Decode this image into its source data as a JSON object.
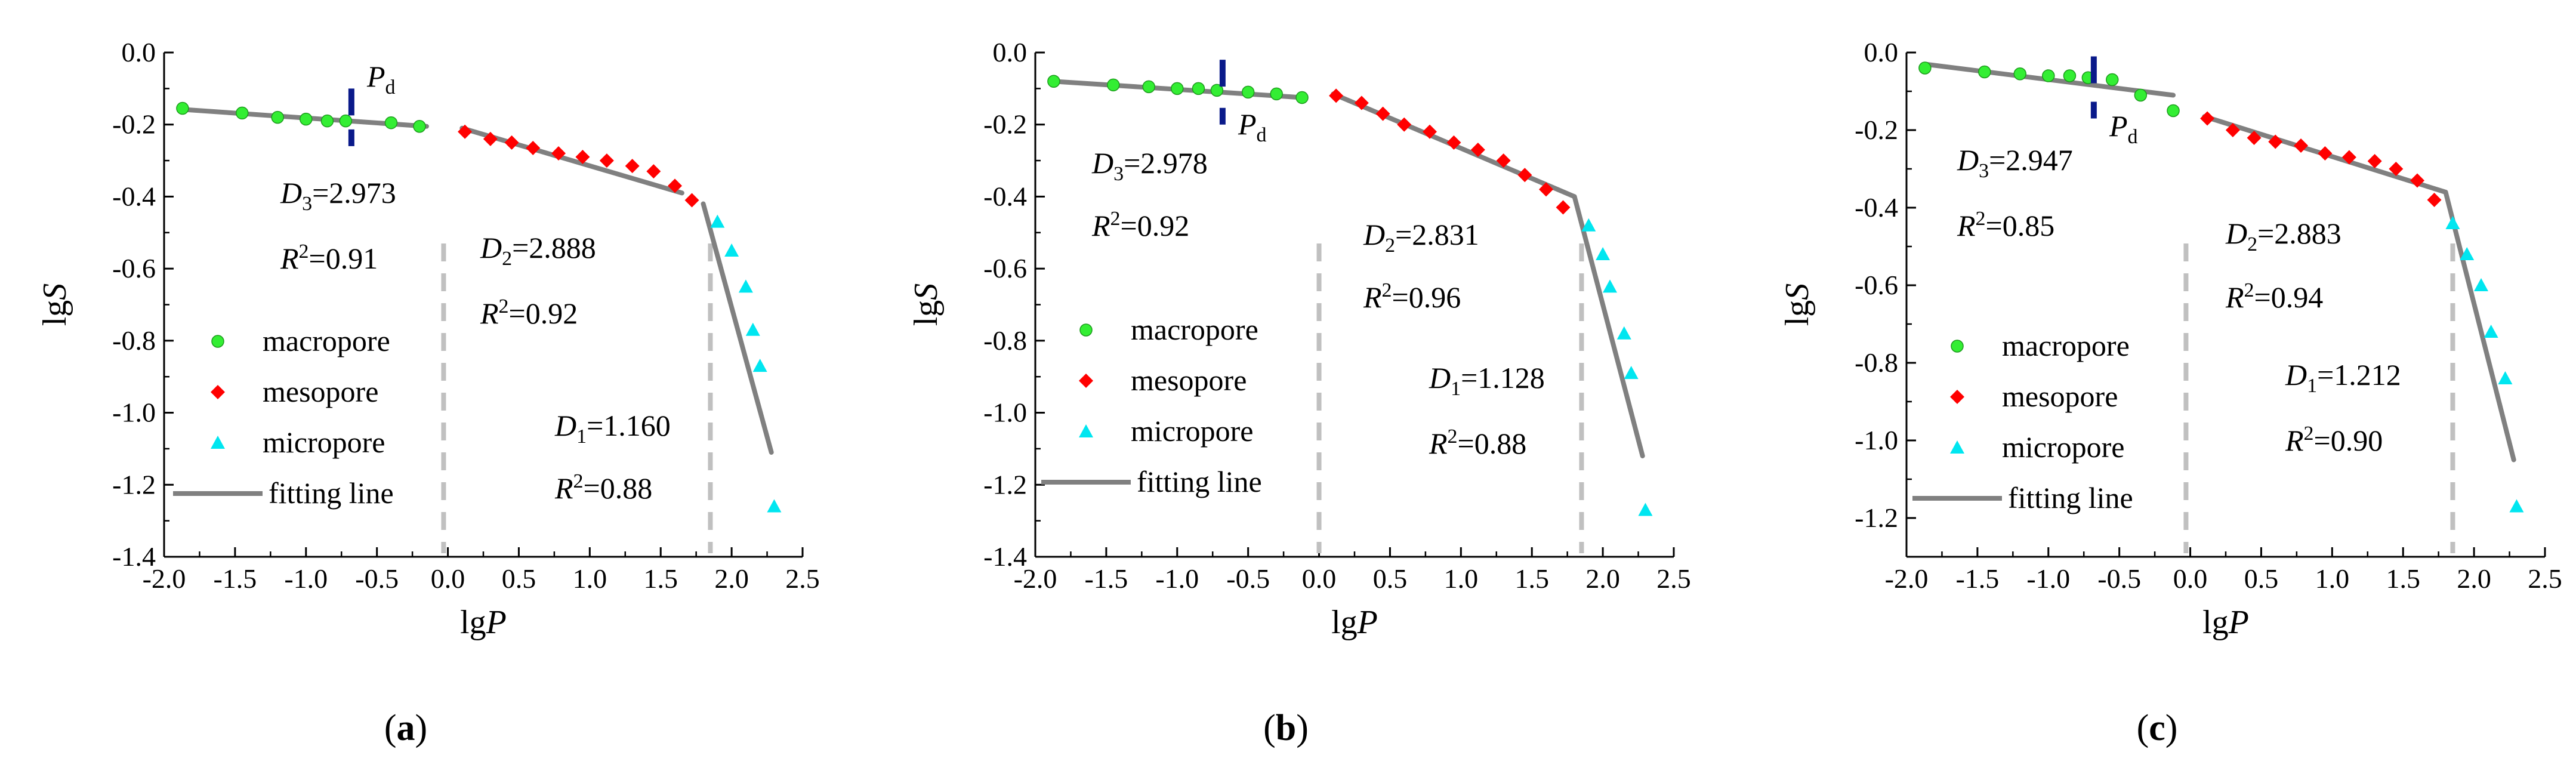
{
  "colors": {
    "macropore": "#33ee33",
    "mesopore": "#ff0000",
    "micropore": "#00e6f0",
    "fitting_line": "#808080",
    "divider": "#c0c0c0",
    "pd_marker": "#0a1a8a",
    "axis": "#000000"
  },
  "legend": {
    "macropore": "macropore",
    "mesopore": "mesopore",
    "micropore": "micropore",
    "fitting_line": "fitting line"
  },
  "chart_data": [
    {
      "type": "scatter",
      "panel_label": "(a)",
      "xlabel": "lgP",
      "ylabel": "lgS",
      "xlim": [
        -2.0,
        2.5
      ],
      "ylim": [
        -1.4,
        0.0
      ],
      "xticks": [
        -2.0,
        -1.5,
        -1.0,
        -0.5,
        0.0,
        0.5,
        1.0,
        1.5,
        2.0,
        2.5
      ],
      "xtick_labels": [
        "-2.0",
        "-1.5",
        "-1.0",
        "-0.5",
        "0.0",
        "0.5",
        "1.0",
        "1.5",
        "2.0",
        "2.5"
      ],
      "yticks": [
        0.0,
        -0.2,
        -0.4,
        -0.6,
        -0.8,
        -1.0,
        -1.2,
        -1.4
      ],
      "ytick_labels": [
        "0.0",
        "-0.2",
        "-0.4",
        "-0.6",
        "-0.8",
        "-1.0",
        "-1.2",
        "-1.4"
      ],
      "series": [
        {
          "name": "macropore",
          "marker": "circle",
          "x": [
            -1.87,
            -1.45,
            -1.2,
            -1.0,
            -0.85,
            -0.72,
            -0.4,
            -0.2
          ],
          "y": [
            -0.155,
            -0.168,
            -0.18,
            -0.185,
            -0.19,
            -0.19,
            -0.195,
            -0.205
          ]
        },
        {
          "name": "mesopore",
          "marker": "diamond",
          "x": [
            0.12,
            0.3,
            0.45,
            0.6,
            0.78,
            0.95,
            1.12,
            1.3,
            1.45,
            1.6,
            1.72
          ],
          "y": [
            -0.22,
            -0.24,
            -0.25,
            -0.265,
            -0.28,
            -0.29,
            -0.3,
            -0.315,
            -0.33,
            -0.37,
            -0.41
          ]
        },
        {
          "name": "micropore",
          "marker": "triangle",
          "x": [
            1.9,
            2.0,
            2.1,
            2.15,
            2.2,
            2.3
          ],
          "y": [
            -0.47,
            -0.55,
            -0.65,
            -0.77,
            -0.87,
            -1.26
          ]
        }
      ],
      "fit_lines": [
        {
          "name": "D3",
          "x": [
            -1.87,
            -0.15
          ],
          "y": [
            -0.158,
            -0.205
          ]
        },
        {
          "name": "D2",
          "x": [
            0.1,
            1.65
          ],
          "y": [
            -0.21,
            -0.39
          ]
        },
        {
          "name": "D1",
          "x": [
            1.8,
            2.28
          ],
          "y": [
            -0.42,
            -1.11
          ]
        }
      ],
      "dividers": [
        -0.03,
        1.85
      ],
      "pd_marker": {
        "x": -0.68,
        "y_range": [
          -0.1,
          -0.26
        ]
      },
      "pd_label": {
        "main": "P",
        "sub": "d"
      },
      "annotations": {
        "d3": {
          "letter": "D",
          "sub": "3",
          "value": "=2.973"
        },
        "r2_3": {
          "letter": "R",
          "sup": "2",
          "value": "=0.91"
        },
        "d2": {
          "letter": "D",
          "sub": "2",
          "value": "=2.888"
        },
        "r2_2": {
          "letter": "R",
          "sup": "2",
          "value": "=0.92"
        },
        "d1": {
          "letter": "D",
          "sub": "1",
          "value": "=1.160"
        },
        "r2_1": {
          "letter": "R",
          "sup": "2",
          "value": "=0.88"
        }
      }
    },
    {
      "type": "scatter",
      "panel_label": "(b)",
      "xlabel": "lgP",
      "ylabel": "lgS",
      "xlim": [
        -2.0,
        2.5
      ],
      "ylim": [
        -1.4,
        0.0
      ],
      "xticks": [
        -2.0,
        -1.5,
        -1.0,
        -0.5,
        0.0,
        0.5,
        1.0,
        1.5,
        2.0,
        2.5
      ],
      "xtick_labels": [
        "-2.0",
        "-1.5",
        "-1.0",
        "-0.5",
        "0.0",
        "0.5",
        "1.0",
        "1.5",
        "2.0",
        "2.5"
      ],
      "yticks": [
        0.0,
        -0.2,
        -0.4,
        -0.6,
        -0.8,
        -1.0,
        -1.2,
        -1.4
      ],
      "ytick_labels": [
        "0.0",
        "-0.2",
        "-0.4",
        "-0.6",
        "-0.8",
        "-1.0",
        "-1.2",
        "-1.4"
      ],
      "series": [
        {
          "name": "macropore",
          "marker": "circle",
          "x": [
            -1.87,
            -1.45,
            -1.2,
            -1.0,
            -0.85,
            -0.72,
            -0.5,
            -0.3,
            -0.12
          ],
          "y": [
            -0.08,
            -0.09,
            -0.095,
            -0.1,
            -0.1,
            -0.105,
            -0.11,
            -0.115,
            -0.125
          ]
        },
        {
          "name": "mesopore",
          "marker": "diamond",
          "x": [
            0.12,
            0.3,
            0.45,
            0.6,
            0.78,
            0.95,
            1.12,
            1.3,
            1.45,
            1.6,
            1.72
          ],
          "y": [
            -0.12,
            -0.14,
            -0.17,
            -0.2,
            -0.22,
            -0.25,
            -0.27,
            -0.3,
            -0.34,
            -0.38,
            -0.43
          ]
        },
        {
          "name": "micropore",
          "marker": "triangle",
          "x": [
            1.9,
            2.0,
            2.05,
            2.15,
            2.2,
            2.3
          ],
          "y": [
            -0.48,
            -0.56,
            -0.65,
            -0.78,
            -0.89,
            -1.27
          ]
        }
      ],
      "fit_lines": [
        {
          "name": "D3",
          "x": [
            -1.87,
            -0.12
          ],
          "y": [
            -0.08,
            -0.125
          ]
        },
        {
          "name": "D2",
          "x": [
            0.1,
            1.8
          ],
          "y": [
            -0.115,
            -0.4
          ]
        },
        {
          "name": "D1",
          "x": [
            1.8,
            2.28
          ],
          "y": [
            -0.4,
            -1.12
          ]
        }
      ],
      "dividers": [
        0.0,
        1.85
      ],
      "pd_marker": {
        "x": -0.68,
        "y_range": [
          -0.02,
          -0.2
        ]
      },
      "pd_label": {
        "main": "P",
        "sub": "d"
      },
      "annotations": {
        "d3": {
          "letter": "D",
          "sub": "3",
          "value": "=2.978"
        },
        "r2_3": {
          "letter": "R",
          "sup": "2",
          "value": "=0.92"
        },
        "d2": {
          "letter": "D",
          "sub": "2",
          "value": "=2.831"
        },
        "r2_2": {
          "letter": "R",
          "sup": "2",
          "value": "=0.96"
        },
        "d1": {
          "letter": "D",
          "sub": "1",
          "value": "=1.128"
        },
        "r2_1": {
          "letter": "R",
          "sup": "2",
          "value": "=0.88"
        }
      }
    },
    {
      "type": "scatter",
      "panel_label": "(c)",
      "xlabel": "lgP",
      "ylabel": "lgS",
      "xlim": [
        -2.0,
        2.5
      ],
      "ylim": [
        -1.3,
        0.0
      ],
      "xticks": [
        -2.0,
        -1.5,
        -1.0,
        -0.5,
        0.0,
        0.5,
        1.0,
        1.5,
        2.0,
        2.5
      ],
      "xtick_labels": [
        "-2.0",
        "-1.5",
        "-1.0",
        "-0.5",
        "0.0",
        "0.5",
        "1.0",
        "1.5",
        "2.0",
        "2.5"
      ],
      "yticks": [
        0.0,
        -0.2,
        -0.4,
        -0.6,
        -0.8,
        -1.0,
        -1.2
      ],
      "ytick_labels": [
        "0.0",
        "-0.2",
        "-0.4",
        "-0.6",
        "-0.8",
        "-1.0",
        "-1.2"
      ],
      "series": [
        {
          "name": "macropore",
          "marker": "circle",
          "x": [
            -1.87,
            -1.45,
            -1.2,
            -1.0,
            -0.85,
            -0.72,
            -0.55,
            -0.35,
            -0.12
          ],
          "y": [
            -0.04,
            -0.05,
            -0.055,
            -0.06,
            -0.06,
            -0.065,
            -0.07,
            -0.11,
            -0.15
          ]
        },
        {
          "name": "mesopore",
          "marker": "diamond",
          "x": [
            0.12,
            0.3,
            0.45,
            0.6,
            0.78,
            0.95,
            1.12,
            1.3,
            1.45,
            1.6,
            1.72
          ],
          "y": [
            -0.17,
            -0.2,
            -0.22,
            -0.23,
            -0.24,
            -0.26,
            -0.27,
            -0.28,
            -0.3,
            -0.33,
            -0.38
          ]
        },
        {
          "name": "micropore",
          "marker": "triangle",
          "x": [
            1.85,
            1.95,
            2.05,
            2.12,
            2.22,
            2.3
          ],
          "y": [
            -0.44,
            -0.52,
            -0.6,
            -0.72,
            -0.84,
            -1.17
          ]
        }
      ],
      "fit_lines": [
        {
          "name": "D3",
          "x": [
            -1.87,
            -0.12
          ],
          "y": [
            -0.03,
            -0.11
          ]
        },
        {
          "name": "D2",
          "x": [
            0.1,
            1.8
          ],
          "y": [
            -0.165,
            -0.36
          ]
        },
        {
          "name": "D1",
          "x": [
            1.8,
            2.28
          ],
          "y": [
            -0.36,
            -1.05
          ]
        }
      ],
      "dividers": [
        -0.03,
        1.85
      ],
      "pd_marker": {
        "x": -0.68,
        "y_range": [
          -0.01,
          -0.17
        ]
      },
      "pd_label": {
        "main": "P",
        "sub": "d"
      },
      "annotations": {
        "d3": {
          "letter": "D",
          "sub": "3",
          "value": "=2.947"
        },
        "r2_3": {
          "letter": "R",
          "sup": "2",
          "value": "=0.85"
        },
        "d2": {
          "letter": "D",
          "sub": "2",
          "value": "=2.883"
        },
        "r2_2": {
          "letter": "R",
          "sup": "2",
          "value": "=0.94"
        },
        "d1": {
          "letter": "D",
          "sub": "1",
          "value": "=1.212"
        },
        "r2_1": {
          "letter": "R",
          "sup": "2",
          "value": "=0.90"
        }
      }
    }
  ]
}
